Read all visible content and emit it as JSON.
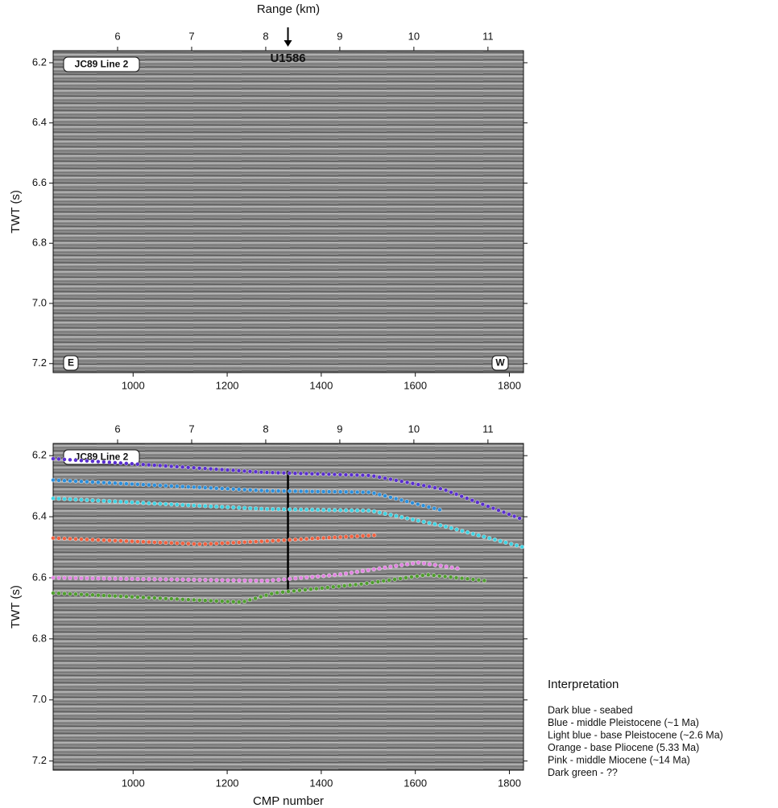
{
  "chart_data": [
    {
      "type": "seismic",
      "ylabel": "TWT (s)",
      "x2label": "Range (km)",
      "xlim": [
        830,
        1830
      ],
      "xticks": [
        1000,
        1200,
        1400,
        1600,
        1800
      ],
      "x2lim": [
        5.13,
        11.48
      ],
      "x2ticks": [
        6,
        7,
        8,
        9,
        10,
        11
      ],
      "ylim": [
        7.23,
        6.16
      ],
      "yticks": [
        6.2,
        6.4,
        6.6,
        6.8,
        {
          "value": 7,
          "label": "7.0"
        },
        7.2
      ],
      "line_label": "JC89 Line 2",
      "site": {
        "label": "U1586",
        "range": 8.3
      },
      "left_label": "E",
      "right_label": "W"
    },
    {
      "type": "line",
      "ylabel": "TWT (s)",
      "xlabel": "CMP number",
      "xlim": [
        830,
        1830
      ],
      "xticks": [
        1000,
        1200,
        1400,
        1600,
        1800
      ],
      "x2lim": [
        5.13,
        11.48
      ],
      "x2ticks": [
        6,
        7,
        8,
        9,
        10,
        11
      ],
      "ylim": [
        7.23,
        6.16
      ],
      "yticks": [
        6.2,
        6.4,
        6.6,
        6.8,
        {
          "value": 7,
          "label": "7.0"
        },
        7.2
      ],
      "line_label": "JC89 Line 2",
      "site": {
        "range": 8.3,
        "top": 6.25,
        "bottom": 6.65
      },
      "legend_title": "Interpretation",
      "series": [
        {
          "name": "Dark blue - seabed",
          "color": "#5a2fd0",
          "x": [
            830,
            1282,
            1505,
            1659,
            1830
          ],
          "values": [
            6.21,
            6.255,
            6.265,
            6.31,
            6.41
          ]
        },
        {
          "name": "Blue - middle Pleistocene (~1 Ma)",
          "color": "#2b8fdc",
          "x": [
            830,
            1282,
            1505,
            1659
          ],
          "values": [
            6.28,
            6.315,
            6.32,
            6.38
          ]
        },
        {
          "name": "Light blue - base Pleistocene (~2.6 Ma)",
          "color": "#3fd3e3",
          "x": [
            830,
            1282,
            1505,
            1659,
            1830
          ],
          "values": [
            6.34,
            6.375,
            6.38,
            6.43,
            6.5
          ]
        },
        {
          "name": "Orange - base Pliocene (5.33 Ma)",
          "color": "#f2603f",
          "x": [
            830,
            1145,
            1282,
            1522
          ],
          "values": [
            6.47,
            6.49,
            6.48,
            6.46
          ]
        },
        {
          "name": "Pink - middle Miocene (~14 Ma)",
          "color": "#e384e3",
          "x": [
            830,
            1282,
            1436,
            1607,
            1693
          ],
          "values": [
            6.6,
            6.61,
            6.59,
            6.55,
            6.57
          ]
        },
        {
          "name": "Dark green - ??",
          "color": "#4f9e2e",
          "x": [
            830,
            1231,
            1299,
            1488,
            1625,
            1753
          ],
          "values": [
            6.65,
            6.68,
            6.65,
            6.62,
            6.59,
            6.61
          ]
        }
      ]
    }
  ]
}
